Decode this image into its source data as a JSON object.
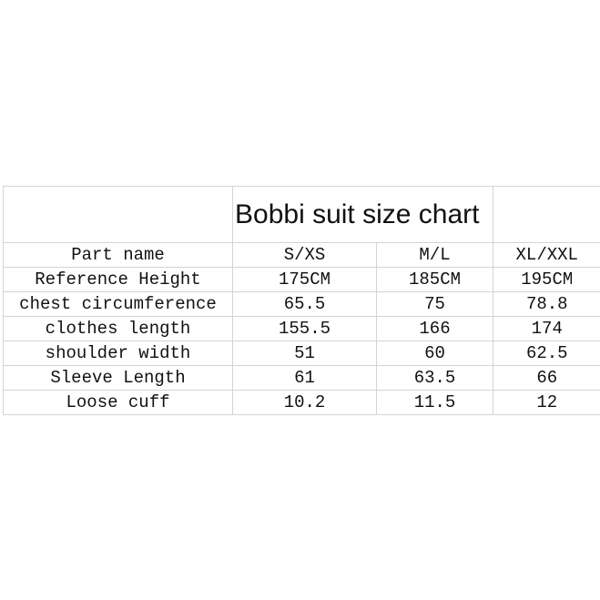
{
  "title": "Bobbi suit size chart",
  "table": {
    "headers": [
      "Part name",
      "S/XS",
      "M/L",
      "XL/XXL"
    ],
    "rows": [
      [
        "Reference Height",
        "175CM",
        "185CM",
        "195CM"
      ],
      [
        "chest circumference",
        "65.5",
        "75",
        "78.8"
      ],
      [
        "clothes length",
        "155.5",
        "166",
        "174"
      ],
      [
        "shoulder width",
        "51",
        "60",
        "62.5"
      ],
      [
        "Sleeve Length",
        "61",
        "63.5",
        "66"
      ],
      [
        "Loose cuff",
        "10.2",
        "11.5",
        "12"
      ]
    ]
  }
}
